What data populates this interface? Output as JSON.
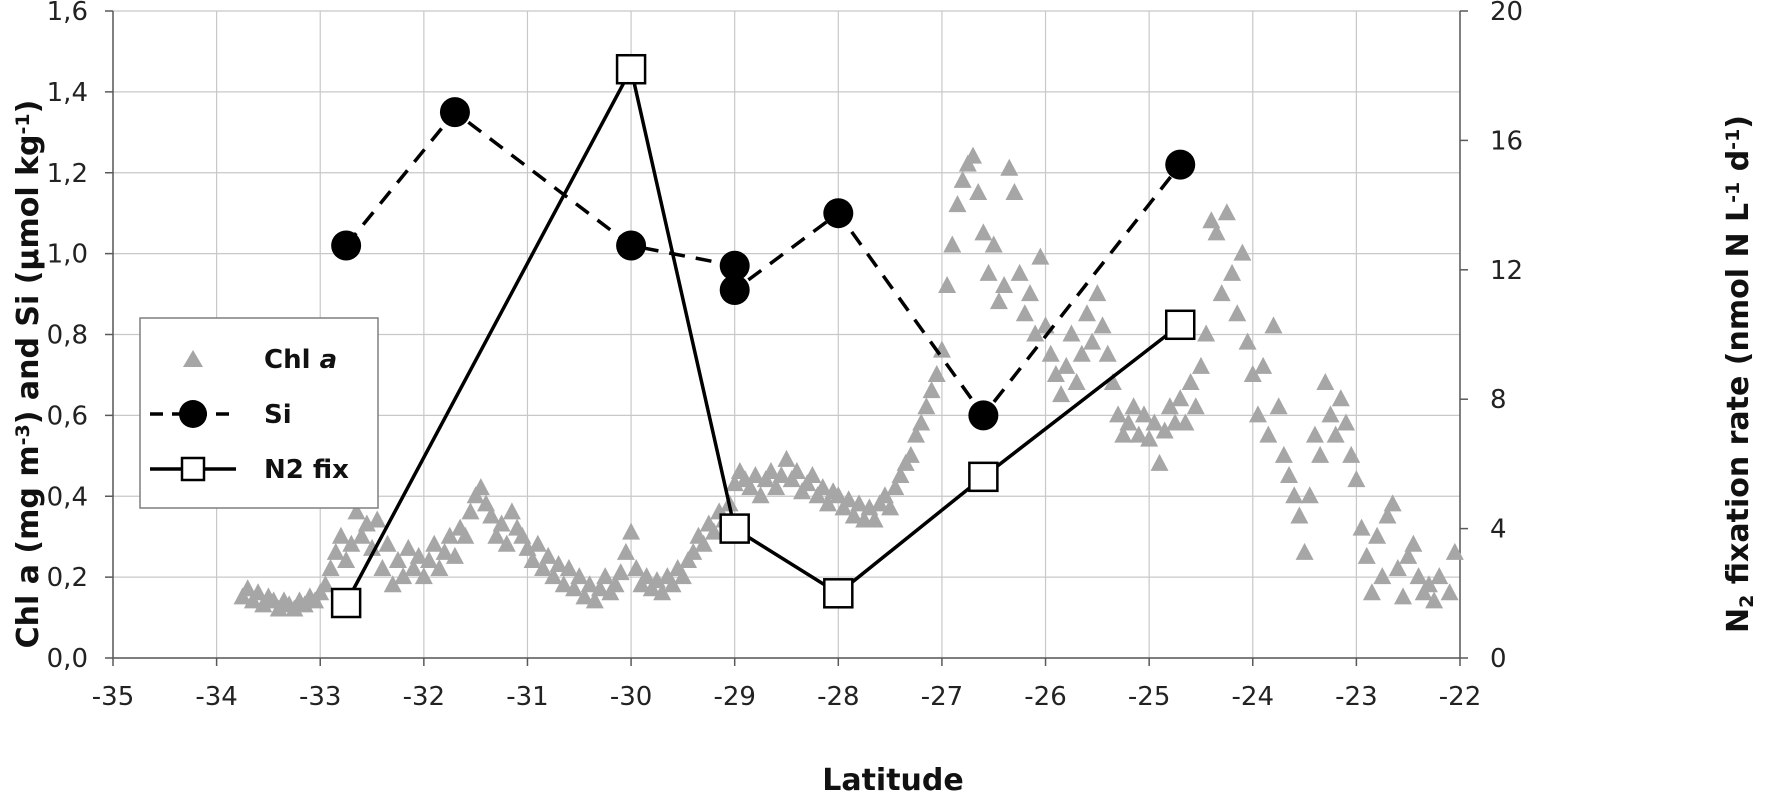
{
  "chart_data": {
    "type": "scatter",
    "title": "",
    "xlabel": "Latitude",
    "ylabel_left_parts": [
      "Chl a (mg m",
      "-3",
      ") and Si (µmol kg",
      "-1",
      ")"
    ],
    "ylabel_right_parts": [
      "N",
      "2",
      " fixation rate (nmol N L",
      "-1",
      " d",
      "-1",
      ")"
    ],
    "xlim": [
      -35,
      -22
    ],
    "ylim_left": [
      0,
      1.6
    ],
    "ylim_right": [
      0,
      20
    ],
    "x_ticks": [
      "-35",
      "-34",
      "-33",
      "-32",
      "-31",
      "-30",
      "-29",
      "-28",
      "-27",
      "-26",
      "-25",
      "-24",
      "-23",
      "-22"
    ],
    "y_left_ticks": [
      "0,0",
      "0,2",
      "0,4",
      "0,6",
      "0,8",
      "1,0",
      "1,2",
      "1,4",
      "1,6"
    ],
    "y_right_ticks": [
      "0",
      "4",
      "8",
      "12",
      "16",
      "20"
    ],
    "grid": true,
    "legend_position": "left-middle",
    "legend": [
      {
        "label_prefix": "Chl ",
        "label_italic": "a",
        "marker": "triangle"
      },
      {
        "label_prefix": "Si",
        "label_italic": "",
        "marker": "circle"
      },
      {
        "label_prefix": "N2 fix",
        "label_italic": "",
        "marker": "square"
      }
    ],
    "colors": {
      "chl": "#a6a6a6",
      "si": "#000000",
      "n2": "#000000",
      "grid": "#c8c8c8"
    },
    "series": [
      {
        "name": "Si",
        "axis": "left",
        "style": "dashed-line-filled-circles",
        "points": [
          [
            -32.75,
            1.02
          ],
          [
            -31.7,
            1.35
          ],
          [
            -30.0,
            1.02
          ],
          [
            -29.0,
            0.97
          ],
          [
            -29.0,
            0.91
          ],
          [
            -28.0,
            1.1
          ],
          [
            -26.6,
            0.6
          ],
          [
            -24.7,
            1.22
          ]
        ]
      },
      {
        "name": "N2 fix",
        "axis": "right",
        "style": "solid-line-open-squares",
        "points": [
          [
            -32.75,
            1.7
          ],
          [
            -30.0,
            18.2
          ],
          [
            -29.0,
            4.0
          ],
          [
            -28.0,
            2.0
          ],
          [
            -26.6,
            5.6
          ],
          [
            -24.7,
            10.3
          ]
        ]
      },
      {
        "name": "Chl a",
        "axis": "left",
        "style": "triangles",
        "points": [
          [
            -33.75,
            0.15
          ],
          [
            -33.7,
            0.17
          ],
          [
            -33.65,
            0.14
          ],
          [
            -33.6,
            0.16
          ],
          [
            -33.55,
            0.13
          ],
          [
            -33.5,
            0.15
          ],
          [
            -33.45,
            0.14
          ],
          [
            -33.4,
            0.12
          ],
          [
            -33.35,
            0.14
          ],
          [
            -33.3,
            0.13
          ],
          [
            -33.25,
            0.12
          ],
          [
            -33.2,
            0.14
          ],
          [
            -33.15,
            0.13
          ],
          [
            -33.1,
            0.15
          ],
          [
            -33.05,
            0.14
          ],
          [
            -33.0,
            0.16
          ],
          [
            -32.95,
            0.18
          ],
          [
            -32.9,
            0.22
          ],
          [
            -32.85,
            0.26
          ],
          [
            -32.8,
            0.3
          ],
          [
            -32.75,
            0.24
          ],
          [
            -32.7,
            0.28
          ],
          [
            -32.65,
            0.36
          ],
          [
            -32.6,
            0.3
          ],
          [
            -32.55,
            0.33
          ],
          [
            -32.5,
            0.27
          ],
          [
            -32.45,
            0.34
          ],
          [
            -32.4,
            0.22
          ],
          [
            -32.35,
            0.28
          ],
          [
            -32.3,
            0.18
          ],
          [
            -32.25,
            0.24
          ],
          [
            -32.2,
            0.2
          ],
          [
            -32.15,
            0.27
          ],
          [
            -32.1,
            0.22
          ],
          [
            -32.05,
            0.25
          ],
          [
            -32.0,
            0.2
          ],
          [
            -31.95,
            0.24
          ],
          [
            -31.9,
            0.28
          ],
          [
            -31.85,
            0.22
          ],
          [
            -31.8,
            0.26
          ],
          [
            -31.75,
            0.3
          ],
          [
            -31.7,
            0.25
          ],
          [
            -31.65,
            0.32
          ],
          [
            -31.6,
            0.3
          ],
          [
            -31.55,
            0.36
          ],
          [
            -31.5,
            0.4
          ],
          [
            -31.45,
            0.42
          ],
          [
            -31.4,
            0.38
          ],
          [
            -31.35,
            0.35
          ],
          [
            -31.3,
            0.3
          ],
          [
            -31.25,
            0.33
          ],
          [
            -31.2,
            0.28
          ],
          [
            -31.15,
            0.36
          ],
          [
            -31.1,
            0.32
          ],
          [
            -31.05,
            0.3
          ],
          [
            -31.0,
            0.27
          ],
          [
            -30.95,
            0.24
          ],
          [
            -30.9,
            0.28
          ],
          [
            -30.85,
            0.22
          ],
          [
            -30.8,
            0.25
          ],
          [
            -30.75,
            0.2
          ],
          [
            -30.7,
            0.23
          ],
          [
            -30.65,
            0.18
          ],
          [
            -30.6,
            0.22
          ],
          [
            -30.55,
            0.17
          ],
          [
            -30.5,
            0.2
          ],
          [
            -30.45,
            0.15
          ],
          [
            -30.4,
            0.18
          ],
          [
            -30.35,
            0.14
          ],
          [
            -30.3,
            0.17
          ],
          [
            -30.25,
            0.2
          ],
          [
            -30.2,
            0.16
          ],
          [
            -30.15,
            0.18
          ],
          [
            -30.1,
            0.21
          ],
          [
            -30.05,
            0.26
          ],
          [
            -30.0,
            0.31
          ],
          [
            -29.95,
            0.22
          ],
          [
            -29.9,
            0.18
          ],
          [
            -29.85,
            0.2
          ],
          [
            -29.8,
            0.17
          ],
          [
            -29.75,
            0.19
          ],
          [
            -29.7,
            0.16
          ],
          [
            -29.65,
            0.2
          ],
          [
            -29.6,
            0.18
          ],
          [
            -29.55,
            0.22
          ],
          [
            -29.5,
            0.2
          ],
          [
            -29.45,
            0.24
          ],
          [
            -29.4,
            0.26
          ],
          [
            -29.35,
            0.3
          ],
          [
            -29.3,
            0.28
          ],
          [
            -29.25,
            0.33
          ],
          [
            -29.2,
            0.31
          ],
          [
            -29.15,
            0.36
          ],
          [
            -29.1,
            0.34
          ],
          [
            -29.05,
            0.38
          ],
          [
            -29.0,
            0.43
          ],
          [
            -28.95,
            0.46
          ],
          [
            -28.9,
            0.44
          ],
          [
            -28.85,
            0.42
          ],
          [
            -28.8,
            0.45
          ],
          [
            -28.75,
            0.4
          ],
          [
            -28.7,
            0.44
          ],
          [
            -28.65,
            0.46
          ],
          [
            -28.6,
            0.42
          ],
          [
            -28.55,
            0.45
          ],
          [
            -28.5,
            0.49
          ],
          [
            -28.45,
            0.44
          ],
          [
            -28.4,
            0.46
          ],
          [
            -28.35,
            0.41
          ],
          [
            -28.3,
            0.43
          ],
          [
            -28.25,
            0.45
          ],
          [
            -28.2,
            0.4
          ],
          [
            -28.15,
            0.42
          ],
          [
            -28.1,
            0.38
          ],
          [
            -28.05,
            0.41
          ],
          [
            -28.0,
            0.4
          ],
          [
            -27.95,
            0.37
          ],
          [
            -27.9,
            0.39
          ],
          [
            -27.85,
            0.35
          ],
          [
            -27.8,
            0.38
          ],
          [
            -27.75,
            0.34
          ],
          [
            -27.7,
            0.37
          ],
          [
            -27.65,
            0.34
          ],
          [
            -27.6,
            0.38
          ],
          [
            -27.55,
            0.4
          ],
          [
            -27.5,
            0.37
          ],
          [
            -27.45,
            0.42
          ],
          [
            -27.4,
            0.45
          ],
          [
            -27.35,
            0.48
          ],
          [
            -27.3,
            0.5
          ],
          [
            -27.25,
            0.55
          ],
          [
            -27.2,
            0.58
          ],
          [
            -27.15,
            0.62
          ],
          [
            -27.1,
            0.66
          ],
          [
            -27.05,
            0.7
          ],
          [
            -27.0,
            0.76
          ],
          [
            -26.95,
            0.92
          ],
          [
            -26.9,
            1.02
          ],
          [
            -26.85,
            1.12
          ],
          [
            -26.8,
            1.18
          ],
          [
            -26.75,
            1.22
          ],
          [
            -26.7,
            1.24
          ],
          [
            -26.65,
            1.15
          ],
          [
            -26.6,
            1.05
          ],
          [
            -26.55,
            0.95
          ],
          [
            -26.5,
            1.02
          ],
          [
            -26.45,
            0.88
          ],
          [
            -26.4,
            0.92
          ],
          [
            -26.35,
            1.21
          ],
          [
            -26.3,
            1.15
          ],
          [
            -26.25,
            0.95
          ],
          [
            -26.2,
            0.85
          ],
          [
            -26.15,
            0.9
          ],
          [
            -26.1,
            0.8
          ],
          [
            -26.05,
            0.99
          ],
          [
            -26.0,
            0.82
          ],
          [
            -25.95,
            0.75
          ],
          [
            -25.9,
            0.7
          ],
          [
            -25.85,
            0.65
          ],
          [
            -25.8,
            0.72
          ],
          [
            -25.75,
            0.8
          ],
          [
            -25.7,
            0.68
          ],
          [
            -25.65,
            0.75
          ],
          [
            -25.6,
            0.85
          ],
          [
            -25.55,
            0.78
          ],
          [
            -25.5,
            0.9
          ],
          [
            -25.45,
            0.82
          ],
          [
            -25.4,
            0.75
          ],
          [
            -25.35,
            0.68
          ],
          [
            -25.3,
            0.6
          ],
          [
            -25.25,
            0.55
          ],
          [
            -25.2,
            0.58
          ],
          [
            -25.15,
            0.62
          ],
          [
            -25.1,
            0.55
          ],
          [
            -25.05,
            0.6
          ],
          [
            -25.0,
            0.54
          ],
          [
            -24.95,
            0.58
          ],
          [
            -24.9,
            0.48
          ],
          [
            -24.85,
            0.56
          ],
          [
            -24.8,
            0.62
          ],
          [
            -24.75,
            0.58
          ],
          [
            -24.7,
            0.64
          ],
          [
            -24.65,
            0.58
          ],
          [
            -24.6,
            0.68
          ],
          [
            -24.55,
            0.62
          ],
          [
            -24.5,
            0.72
          ],
          [
            -24.45,
            0.8
          ],
          [
            -24.4,
            1.08
          ],
          [
            -24.35,
            1.05
          ],
          [
            -24.3,
            0.9
          ],
          [
            -24.25,
            1.1
          ],
          [
            -24.2,
            0.95
          ],
          [
            -24.15,
            0.85
          ],
          [
            -24.1,
            1.0
          ],
          [
            -24.05,
            0.78
          ],
          [
            -24.0,
            0.7
          ],
          [
            -23.95,
            0.6
          ],
          [
            -23.9,
            0.72
          ],
          [
            -23.85,
            0.55
          ],
          [
            -23.8,
            0.82
          ],
          [
            -23.75,
            0.62
          ],
          [
            -23.7,
            0.5
          ],
          [
            -23.65,
            0.45
          ],
          [
            -23.6,
            0.4
          ],
          [
            -23.55,
            0.35
          ],
          [
            -23.5,
            0.26
          ],
          [
            -23.45,
            0.4
          ],
          [
            -23.4,
            0.55
          ],
          [
            -23.35,
            0.5
          ],
          [
            -23.3,
            0.68
          ],
          [
            -23.25,
            0.6
          ],
          [
            -23.2,
            0.55
          ],
          [
            -23.15,
            0.64
          ],
          [
            -23.1,
            0.58
          ],
          [
            -23.05,
            0.5
          ],
          [
            -23.0,
            0.44
          ],
          [
            -22.95,
            0.32
          ],
          [
            -22.9,
            0.25
          ],
          [
            -22.85,
            0.16
          ],
          [
            -22.8,
            0.3
          ],
          [
            -22.75,
            0.2
          ],
          [
            -22.7,
            0.35
          ],
          [
            -22.65,
            0.38
          ],
          [
            -22.6,
            0.22
          ],
          [
            -22.55,
            0.15
          ],
          [
            -22.5,
            0.25
          ],
          [
            -22.45,
            0.28
          ],
          [
            -22.4,
            0.2
          ],
          [
            -22.35,
            0.16
          ],
          [
            -22.3,
            0.18
          ],
          [
            -22.25,
            0.14
          ],
          [
            -22.2,
            0.2
          ],
          [
            -22.1,
            0.16
          ],
          [
            -22.05,
            0.26
          ]
        ]
      }
    ]
  }
}
